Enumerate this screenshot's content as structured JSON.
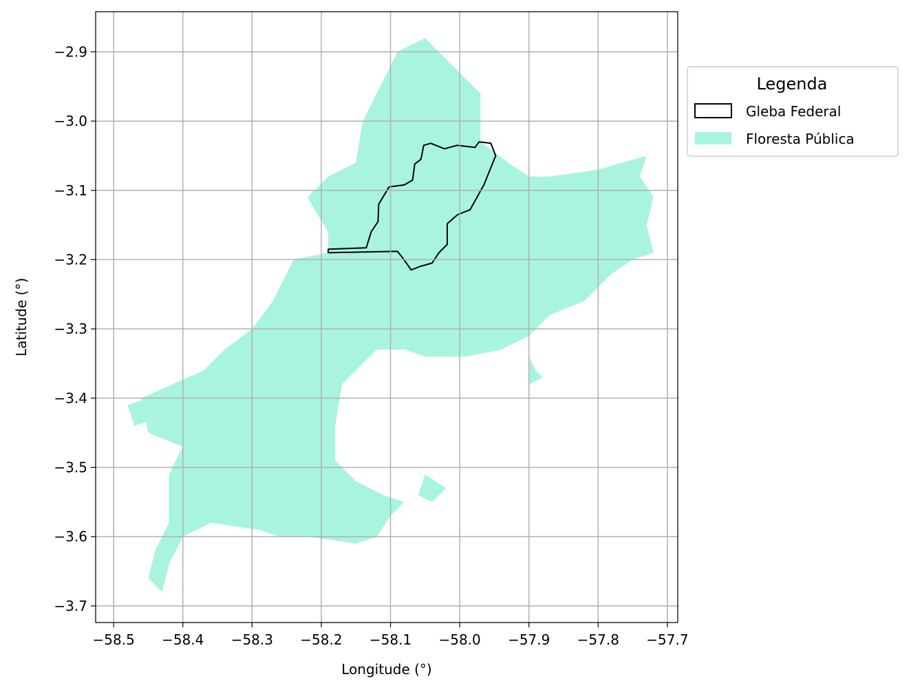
{
  "map": {
    "xlabel": "Longitude (°)",
    "ylabel": "Latitude (°)",
    "xlim": [
      -58.526,
      -57.685
    ],
    "ylim": [
      -3.724,
      -2.842
    ],
    "x_ticks": [
      -58.5,
      -58.4,
      -58.3,
      -58.2,
      -58.1,
      -58.0,
      -57.9,
      -57.8,
      -57.7
    ],
    "x_tick_labels": [
      "−58.5",
      "−58.4",
      "−58.3",
      "−58.2",
      "−58.1",
      "−58.0",
      "−57.9",
      "−57.8",
      "−57.7"
    ],
    "y_ticks": [
      -2.9,
      -3.0,
      -3.1,
      -3.2,
      -3.3,
      -3.4,
      -3.5,
      -3.6,
      -3.7
    ],
    "y_tick_labels": [
      "−2.9",
      "−3.0",
      "−3.1",
      "−3.2",
      "−3.3",
      "−3.4",
      "−3.5",
      "−3.6",
      "−3.7"
    ],
    "grid": true,
    "legend": {
      "title": "Legenda",
      "placement": "outside upper right",
      "items": [
        {
          "label": "Gleba Federal",
          "style": "outline",
          "color": "#000000"
        },
        {
          "label": "Floresta Pública",
          "style": "fill",
          "color": "#a8f4e0"
        }
      ]
    },
    "colors": {
      "forest_fill": "#a8f4e0",
      "gleba_edge": "#000000",
      "grid": "#b0b0b0"
    },
    "layers": {
      "floresta_publica": [
        [
          [
            -57.97,
            -2.96
          ],
          [
            -58.05,
            -2.88
          ],
          [
            -58.09,
            -2.9
          ],
          [
            -58.11,
            -2.94
          ],
          [
            -58.14,
            -3.0
          ],
          [
            -58.15,
            -3.06
          ],
          [
            -58.19,
            -3.08
          ],
          [
            -58.22,
            -3.11
          ],
          [
            -58.19,
            -3.16
          ],
          [
            -58.19,
            -3.19
          ],
          [
            -58.24,
            -3.2
          ],
          [
            -58.27,
            -3.26
          ],
          [
            -58.3,
            -3.3
          ],
          [
            -58.34,
            -3.33
          ],
          [
            -58.37,
            -3.36
          ],
          [
            -58.46,
            -3.4
          ],
          [
            -58.45,
            -3.45
          ],
          [
            -58.4,
            -3.47
          ],
          [
            -58.42,
            -3.51
          ],
          [
            -58.42,
            -3.58
          ],
          [
            -58.44,
            -3.62
          ],
          [
            -58.45,
            -3.66
          ],
          [
            -58.43,
            -3.68
          ],
          [
            -58.42,
            -3.64
          ],
          [
            -58.4,
            -3.6
          ],
          [
            -58.38,
            -3.59
          ],
          [
            -58.36,
            -3.58
          ],
          [
            -58.29,
            -3.59
          ],
          [
            -58.26,
            -3.6
          ],
          [
            -58.22,
            -3.6
          ],
          [
            -58.15,
            -3.61
          ],
          [
            -58.12,
            -3.6
          ],
          [
            -58.1,
            -3.57
          ],
          [
            -58.08,
            -3.55
          ],
          [
            -58.11,
            -3.54
          ],
          [
            -58.15,
            -3.52
          ],
          [
            -58.18,
            -3.49
          ],
          [
            -58.18,
            -3.44
          ],
          [
            -58.17,
            -3.38
          ],
          [
            -58.14,
            -3.35
          ],
          [
            -58.12,
            -3.33
          ],
          [
            -58.08,
            -3.33
          ],
          [
            -58.05,
            -3.34
          ],
          [
            -57.99,
            -3.34
          ],
          [
            -57.94,
            -3.33
          ],
          [
            -57.9,
            -3.31
          ],
          [
            -57.87,
            -3.28
          ],
          [
            -57.82,
            -3.26
          ],
          [
            -57.78,
            -3.22
          ],
          [
            -57.75,
            -3.2
          ],
          [
            -57.72,
            -3.19
          ],
          [
            -57.73,
            -3.15
          ],
          [
            -57.72,
            -3.11
          ],
          [
            -57.74,
            -3.08
          ],
          [
            -57.73,
            -3.05
          ],
          [
            -57.8,
            -3.07
          ],
          [
            -57.87,
            -3.08
          ],
          [
            -57.9,
            -3.08
          ],
          [
            -57.93,
            -3.06
          ],
          [
            -57.97,
            -3.03
          ]
        ],
        [
          [
            -57.9,
            -3.38
          ],
          [
            -57.9,
            -3.34
          ],
          [
            -57.89,
            -3.36
          ],
          [
            -57.88,
            -3.37
          ]
        ],
        [
          [
            -58.05,
            -3.51
          ],
          [
            -58.02,
            -3.53
          ],
          [
            -58.04,
            -3.55
          ],
          [
            -58.06,
            -3.54
          ]
        ],
        [
          [
            -58.4,
            -3.49
          ],
          [
            -58.38,
            -3.5
          ],
          [
            -58.39,
            -3.52
          ],
          [
            -58.41,
            -3.51
          ]
        ],
        [
          [
            -58.48,
            -3.41
          ],
          [
            -58.45,
            -3.4
          ],
          [
            -58.44,
            -3.43
          ],
          [
            -58.47,
            -3.44
          ]
        ]
      ],
      "gleba_federal": [
        [
          [
            -58.19,
            -3.19
          ],
          [
            -58.19,
            -3.185
          ],
          [
            -58.135,
            -3.183
          ],
          [
            -58.128,
            -3.16
          ],
          [
            -58.118,
            -3.145
          ],
          [
            -58.117,
            -3.12
          ],
          [
            -58.102,
            -3.095
          ],
          [
            -58.08,
            -3.092
          ],
          [
            -58.068,
            -3.085
          ],
          [
            -58.065,
            -3.062
          ],
          [
            -58.056,
            -3.055
          ],
          [
            -58.052,
            -3.035
          ],
          [
            -58.042,
            -3.032
          ],
          [
            -58.022,
            -3.04
          ],
          [
            -58.004,
            -3.035
          ],
          [
            -57.978,
            -3.038
          ],
          [
            -57.972,
            -3.03
          ],
          [
            -57.955,
            -3.032
          ],
          [
            -57.948,
            -3.05
          ],
          [
            -57.965,
            -3.092
          ],
          [
            -57.985,
            -3.128
          ],
          [
            -58.003,
            -3.135
          ],
          [
            -58.018,
            -3.148
          ],
          [
            -58.018,
            -3.178
          ],
          [
            -58.03,
            -3.19
          ],
          [
            -58.04,
            -3.205
          ],
          [
            -58.058,
            -3.21
          ],
          [
            -58.07,
            -3.215
          ],
          [
            -58.082,
            -3.198
          ],
          [
            -58.09,
            -3.188
          ],
          [
            -58.19,
            -3.19
          ]
        ]
      ]
    }
  }
}
